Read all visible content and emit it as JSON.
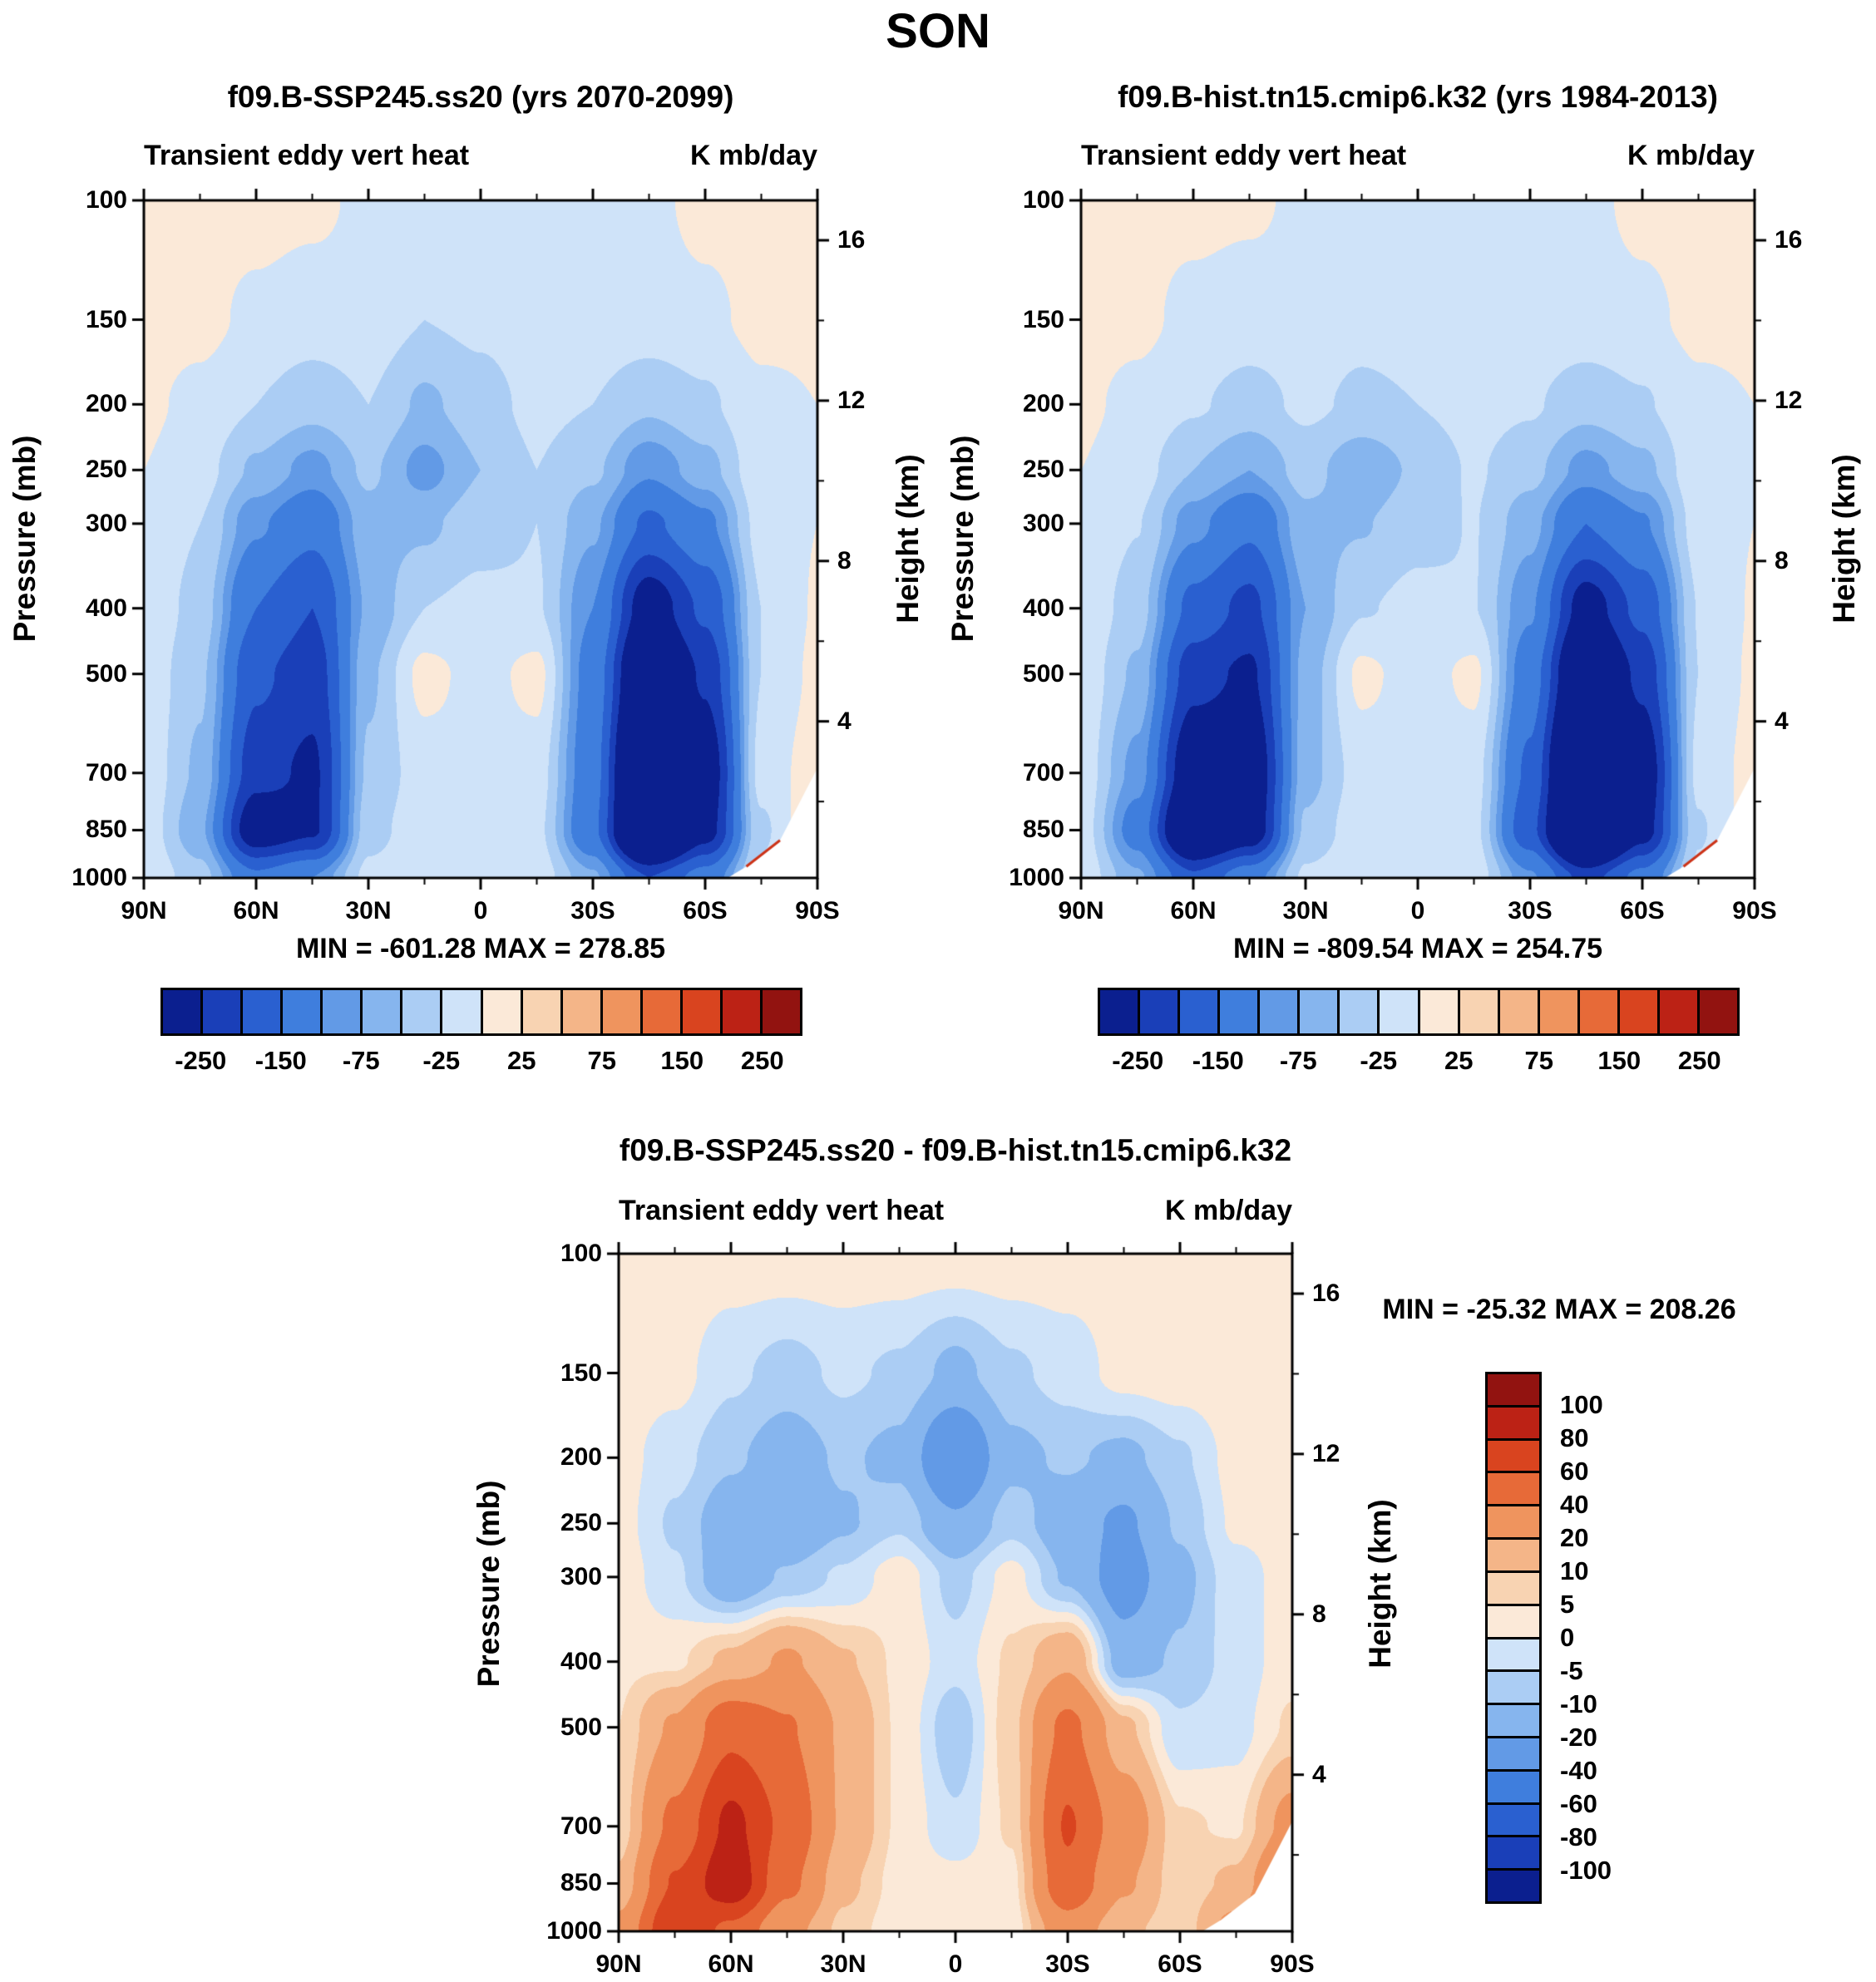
{
  "title": "SON",
  "axes": {
    "pressure_label": "Pressure (mb)",
    "height_label": "Height (km)"
  },
  "panels": [
    {
      "title": "f09.B-SSP245.ss20 (yrs 2070-2099)",
      "subtitle_left": "Transient eddy vert heat",
      "subtitle_right": "K mb/day",
      "min_max": "MIN = -601.28  MAX = 278.85"
    },
    {
      "title": "f09.B-hist.tn15.cmip6.k32 (yrs 1984-2013)",
      "subtitle_left": "Transient eddy vert heat",
      "subtitle_right": "K mb/day",
      "min_max": "MIN = -809.54  MAX = 254.75"
    },
    {
      "title": "f09.B-SSP245.ss20 - f09.B-hist.tn15.cmip6.k32",
      "subtitle_left": "Transient eddy vert heat",
      "subtitle_right": "K mb/day",
      "min_max": "MIN = -25.32  MAX = 208.26"
    }
  ],
  "chart_data": [
    {
      "type": "heatmap",
      "style": "filled-contour",
      "title": "f09.B-SSP245.ss20 (yrs 2070-2099)",
      "variable": "Transient eddy vert heat",
      "units": "K mb/day",
      "min": -601.28,
      "max": 278.85,
      "ylabel": "Pressure (mb)",
      "y2label": "Height (km)",
      "x_ticks": [
        {
          "label": "90N",
          "lat": 90
        },
        {
          "label": "60N",
          "lat": 60
        },
        {
          "label": "30N",
          "lat": 30
        },
        {
          "label": "0",
          "lat": 0
        },
        {
          "label": "30S",
          "lat": -30
        },
        {
          "label": "60S",
          "lat": -60
        },
        {
          "label": "90S",
          "lat": -90
        }
      ],
      "lat": [
        90,
        75,
        60,
        45,
        30,
        15,
        0,
        -15,
        -30,
        -45,
        -60,
        -75,
        -90
      ],
      "pressure": [
        100,
        150,
        200,
        250,
        300,
        400,
        500,
        700,
        850,
        1000
      ],
      "height_ticks": [
        16,
        12,
        8,
        4
      ],
      "values": [
        [
          8,
          8,
          8,
          5,
          -5,
          -8,
          -8,
          -8,
          -6,
          -5,
          6,
          8,
          6
        ],
        [
          8,
          6,
          -5,
          -12,
          -10,
          -25,
          -20,
          -10,
          -8,
          -10,
          -5,
          6,
          4
        ],
        [
          4,
          -6,
          -25,
          -40,
          -25,
          -55,
          -35,
          -18,
          -25,
          -45,
          -30,
          -5,
          0
        ],
        [
          0,
          -15,
          -55,
          -85,
          -45,
          -85,
          -50,
          -25,
          -45,
          -95,
          -60,
          -8,
          0
        ],
        [
          -2,
          -25,
          -95,
          -135,
          -60,
          -55,
          -35,
          -25,
          -70,
          -160,
          -110,
          -15,
          0
        ],
        [
          -5,
          -35,
          -150,
          -200,
          -70,
          -25,
          -18,
          -22,
          -100,
          -290,
          -190,
          -25,
          2
        ],
        [
          -8,
          -45,
          -190,
          -230,
          -55,
          8,
          -10,
          8,
          -120,
          -380,
          -240,
          -25,
          5
        ],
        [
          -8,
          -55,
          -230,
          -260,
          -45,
          -12,
          -8,
          -12,
          -130,
          -480,
          -300,
          -15,
          12
        ],
        [
          -10,
          -70,
          -300,
          -260,
          -35,
          -8,
          -10,
          -18,
          -140,
          -500,
          -280,
          -30,
          25
        ],
        [
          -5,
          -40,
          -140,
          -100,
          -18,
          -5,
          -6,
          -10,
          -70,
          -200,
          -130,
          -20,
          15
        ]
      ],
      "mask": [
        [
          -66,
          1000
        ],
        [
          -90,
          1000
        ],
        [
          -90,
          688
        ],
        [
          -80,
          880
        ],
        [
          -71,
          962
        ]
      ],
      "mask_accent": true,
      "colorbar": {
        "levels": [
          -250,
          -200,
          -150,
          -100,
          -75,
          -50,
          -25,
          0,
          25,
          50,
          75,
          100,
          150,
          200,
          250
        ],
        "colors": [
          "#0b1f8f",
          "#1a3fb8",
          "#2a60d0",
          "#3f7edd",
          "#629ae6",
          "#86b5ee",
          "#abcdf4",
          "#cfe3f9",
          "#fbe9d8",
          "#f8d3b2",
          "#f4b588",
          "#ef945e",
          "#e76a38",
          "#d9441f",
          "#bc2215",
          "#921310"
        ],
        "labels": [
          -250,
          -150,
          -75,
          -25,
          25,
          75,
          150,
          250
        ]
      }
    },
    {
      "type": "heatmap",
      "style": "filled-contour",
      "title": "f09.B-hist.tn15.cmip6.k32 (yrs 1984-2013)",
      "variable": "Transient eddy vert heat",
      "units": "K mb/day",
      "min": -809.54,
      "max": 254.75,
      "ylabel": "Pressure (mb)",
      "y2label": "Height (km)",
      "x_ticks": [
        {
          "label": "90N",
          "lat": 90
        },
        {
          "label": "60N",
          "lat": 60
        },
        {
          "label": "30N",
          "lat": 30
        },
        {
          "label": "0",
          "lat": 0
        },
        {
          "label": "30S",
          "lat": -30
        },
        {
          "label": "60S",
          "lat": -60
        },
        {
          "label": "90S",
          "lat": -90
        }
      ],
      "lat": [
        90,
        75,
        60,
        45,
        30,
        15,
        0,
        -15,
        -30,
        -45,
        -60,
        -75,
        -90
      ],
      "pressure": [
        100,
        150,
        200,
        250,
        300,
        400,
        500,
        700,
        850,
        1000
      ],
      "height_ticks": [
        16,
        12,
        8,
        4
      ],
      "values": [
        [
          6,
          6,
          6,
          4,
          -5,
          -8,
          -8,
          -8,
          -6,
          -5,
          5,
          8,
          6
        ],
        [
          8,
          5,
          -6,
          -12,
          -10,
          -18,
          -14,
          -9,
          -8,
          -10,
          -5,
          5,
          4
        ],
        [
          4,
          -6,
          -22,
          -35,
          -20,
          -30,
          -25,
          -15,
          -22,
          -40,
          -28,
          -5,
          0
        ],
        [
          0,
          -14,
          -50,
          -75,
          -40,
          -70,
          -45,
          -22,
          -42,
          -85,
          -58,
          -8,
          0
        ],
        [
          -2,
          -24,
          -90,
          -140,
          -58,
          -52,
          -33,
          -24,
          -66,
          -150,
          -105,
          -14,
          0
        ],
        [
          -5,
          -38,
          -165,
          -215,
          -75,
          -27,
          -18,
          -24,
          -95,
          -280,
          -185,
          -24,
          2
        ],
        [
          -8,
          -55,
          -230,
          -260,
          -65,
          6,
          -12,
          6,
          -125,
          -370,
          -235,
          -25,
          4
        ],
        [
          -10,
          -85,
          -310,
          -310,
          -60,
          -14,
          -8,
          -14,
          -160,
          -500,
          -300,
          -18,
          8
        ],
        [
          -12,
          -120,
          -390,
          -300,
          -45,
          -9,
          -10,
          -18,
          -185,
          -520,
          -280,
          -28,
          12
        ],
        [
          -8,
          -70,
          -190,
          -120,
          -20,
          -5,
          -6,
          -10,
          -95,
          -220,
          -135,
          -20,
          10
        ]
      ],
      "mask": [
        [
          -66,
          1000
        ],
        [
          -90,
          1000
        ],
        [
          -90,
          688
        ],
        [
          -80,
          880
        ],
        [
          -71,
          962
        ]
      ],
      "mask_accent": true,
      "colorbar": {
        "levels": [
          -250,
          -200,
          -150,
          -100,
          -75,
          -50,
          -25,
          0,
          25,
          50,
          75,
          100,
          150,
          200,
          250
        ],
        "colors": [
          "#0b1f8f",
          "#1a3fb8",
          "#2a60d0",
          "#3f7edd",
          "#629ae6",
          "#86b5ee",
          "#abcdf4",
          "#cfe3f9",
          "#fbe9d8",
          "#f8d3b2",
          "#f4b588",
          "#ef945e",
          "#e76a38",
          "#d9441f",
          "#bc2215",
          "#921310"
        ],
        "labels": [
          -250,
          -150,
          -75,
          -25,
          25,
          75,
          150,
          250
        ]
      }
    },
    {
      "type": "heatmap",
      "style": "filled-contour",
      "title": "f09.B-SSP245.ss20 - f09.B-hist.tn15.cmip6.k32",
      "variable": "Transient eddy vert heat",
      "units": "K mb/day",
      "min": -25.32,
      "max": 208.26,
      "ylabel": "Pressure (mb)",
      "y2label": "Height (km)",
      "x_ticks": [
        {
          "label": "90N",
          "lat": 90
        },
        {
          "label": "60N",
          "lat": 60
        },
        {
          "label": "30N",
          "lat": 30
        },
        {
          "label": "0",
          "lat": 0
        },
        {
          "label": "30S",
          "lat": -30
        },
        {
          "label": "60S",
          "lat": -60
        },
        {
          "label": "90S",
          "lat": -90
        }
      ],
      "lat": [
        90,
        75,
        60,
        45,
        30,
        15,
        0,
        -15,
        -30,
        -45,
        -60,
        -75,
        -90
      ],
      "pressure": [
        100,
        150,
        200,
        250,
        300,
        400,
        500,
        700,
        850,
        1000
      ],
      "height_ticks": [
        16,
        12,
        8,
        4
      ],
      "values": [
        [
          4,
          4,
          3,
          3,
          3,
          3,
          3,
          3,
          3,
          3,
          4,
          4,
          4
        ],
        [
          3,
          2,
          -4,
          -7,
          -4,
          -6,
          -12,
          -6,
          -3,
          2,
          3,
          4,
          3
        ],
        [
          2,
          -3,
          -9,
          -14,
          -9,
          -12,
          -35,
          -12,
          -9,
          -12,
          -6,
          2,
          2
        ],
        [
          2,
          -6,
          -15,
          -18,
          -11,
          -6,
          -18,
          -7,
          -15,
          -22,
          -9,
          1,
          2
        ],
        [
          3,
          -4,
          -16,
          -9,
          -4,
          3,
          -7,
          2,
          -11,
          -26,
          -12,
          -2,
          2
        ],
        [
          4,
          4,
          12,
          22,
          11,
          4,
          -3,
          6,
          18,
          -14,
          -9,
          -3,
          3
        ],
        [
          5,
          22,
          55,
          42,
          18,
          4,
          -9,
          8,
          45,
          12,
          -4,
          -2,
          6
        ],
        [
          6,
          45,
          85,
          55,
          18,
          4,
          -4,
          6,
          62,
          30,
          6,
          4,
          25
        ],
        [
          12,
          62,
          95,
          45,
          12,
          3,
          2,
          3,
          55,
          22,
          6,
          12,
          45
        ],
        [
          25,
          80,
          55,
          25,
          8,
          2,
          2,
          2,
          30,
          12,
          6,
          25,
          65
        ]
      ],
      "mask": [
        [
          -66,
          1000
        ],
        [
          -90,
          1000
        ],
        [
          -90,
          688
        ],
        [
          -80,
          880
        ],
        [
          -71,
          962
        ]
      ],
      "mask_accent": false,
      "colorbar": {
        "levels": [
          -100,
          -80,
          -60,
          -40,
          -20,
          -10,
          -5,
          0,
          5,
          10,
          20,
          40,
          60,
          80,
          100
        ],
        "colors": [
          "#0b1f8f",
          "#1a3fb8",
          "#2a60d0",
          "#3f7edd",
          "#629ae6",
          "#86b5ee",
          "#abcdf4",
          "#cfe3f9",
          "#fbe9d8",
          "#f8d3b2",
          "#f4b588",
          "#ef945e",
          "#e76a38",
          "#d9441f",
          "#bc2215",
          "#921310"
        ],
        "labels": [
          100,
          80,
          60,
          40,
          20,
          10,
          5,
          0,
          -5,
          -10,
          -20,
          -40,
          -60,
          -80,
          -100
        ]
      }
    }
  ]
}
